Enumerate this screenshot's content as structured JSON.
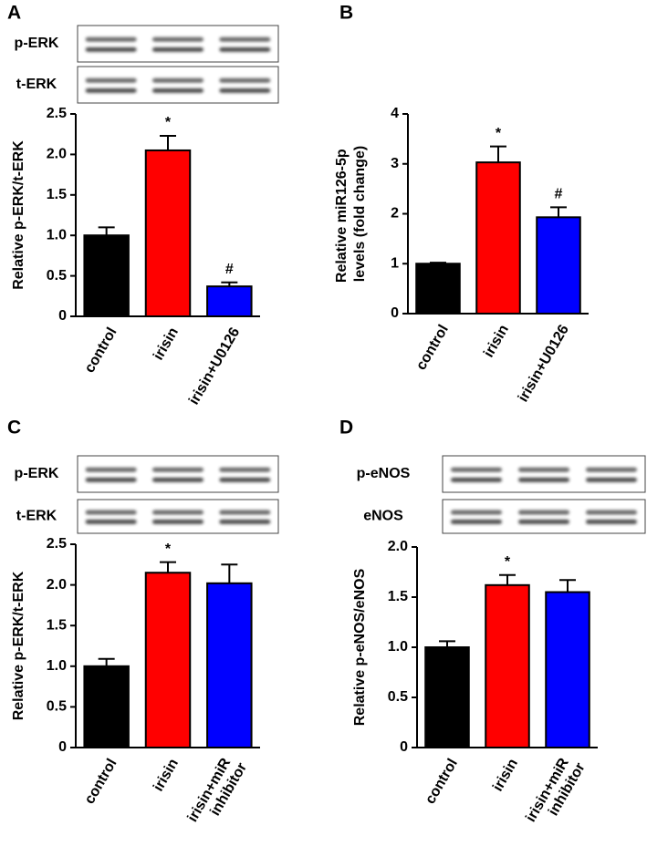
{
  "chart_data": [
    {
      "type": "bar",
      "panel": "A",
      "blot_labels": [
        "p-ERK",
        "t-ERK"
      ],
      "ylabel": "Relative p-ERK/t-ERK",
      "categories": [
        "control",
        "irisin",
        "irisin+U0126"
      ],
      "values": [
        1.0,
        2.05,
        0.37
      ],
      "errors": [
        0.1,
        0.18,
        0.05
      ],
      "bar_labels": [
        null,
        "*",
        "#"
      ],
      "colors": [
        "#000000",
        "#ff0000",
        "#0000ff"
      ],
      "ylim": [
        0,
        2.5
      ],
      "yticks": [
        0,
        0.5,
        {
          "value": 1,
          "label": "1.0"
        },
        1.5,
        {
          "value": 2,
          "label": "2.0"
        },
        2.5
      ]
    },
    {
      "type": "bar",
      "panel": "B",
      "ylabel": "Relative miR126-5p levels (fold change)",
      "categories": [
        "control",
        "irisin",
        "irisin+U0126"
      ],
      "values": [
        1.0,
        3.03,
        1.93
      ],
      "errors": [
        0.02,
        0.32,
        0.2
      ],
      "bar_labels": [
        null,
        "*",
        "#"
      ],
      "colors": [
        "#000000",
        "#ff0000",
        "#0000ff"
      ],
      "ylim": [
        0,
        4
      ],
      "yticks": [
        0,
        1,
        2,
        3,
        4
      ]
    },
    {
      "type": "bar",
      "panel": "C",
      "blot_labels": [
        "p-ERK",
        "t-ERK"
      ],
      "ylabel": "Relative p-ERK/t-ERK",
      "categories": [
        "control",
        "irisin",
        "irisin+miR inhibitor"
      ],
      "values": [
        1.0,
        2.15,
        2.02
      ],
      "errors": [
        0.09,
        0.13,
        0.23
      ],
      "bar_labels": [
        null,
        "*",
        null
      ],
      "colors": [
        "#000000",
        "#ff0000",
        "#0000ff"
      ],
      "ylim": [
        0,
        2.5
      ],
      "yticks": [
        0,
        0.5,
        {
          "value": 1,
          "label": "1.0"
        },
        1.5,
        {
          "value": 2,
          "label": "2.0"
        },
        2.5
      ]
    },
    {
      "type": "bar",
      "panel": "D",
      "blot_labels": [
        "p-eNOS",
        "eNOS"
      ],
      "ylabel": "Relative p-eNOS/eNOS",
      "categories": [
        "control",
        "irisin",
        "irisin+miR inhibitor"
      ],
      "values": [
        1.0,
        1.62,
        1.55
      ],
      "errors": [
        0.06,
        0.1,
        0.12
      ],
      "bar_labels": [
        null,
        "*",
        null
      ],
      "colors": [
        "#000000",
        "#ff0000",
        "#0000ff"
      ],
      "ylim": [
        0,
        2
      ],
      "yticks": [
        0,
        0.5,
        {
          "value": 1,
          "label": "1.0"
        },
        1.5,
        {
          "value": 2,
          "label": "2.0"
        }
      ]
    }
  ]
}
